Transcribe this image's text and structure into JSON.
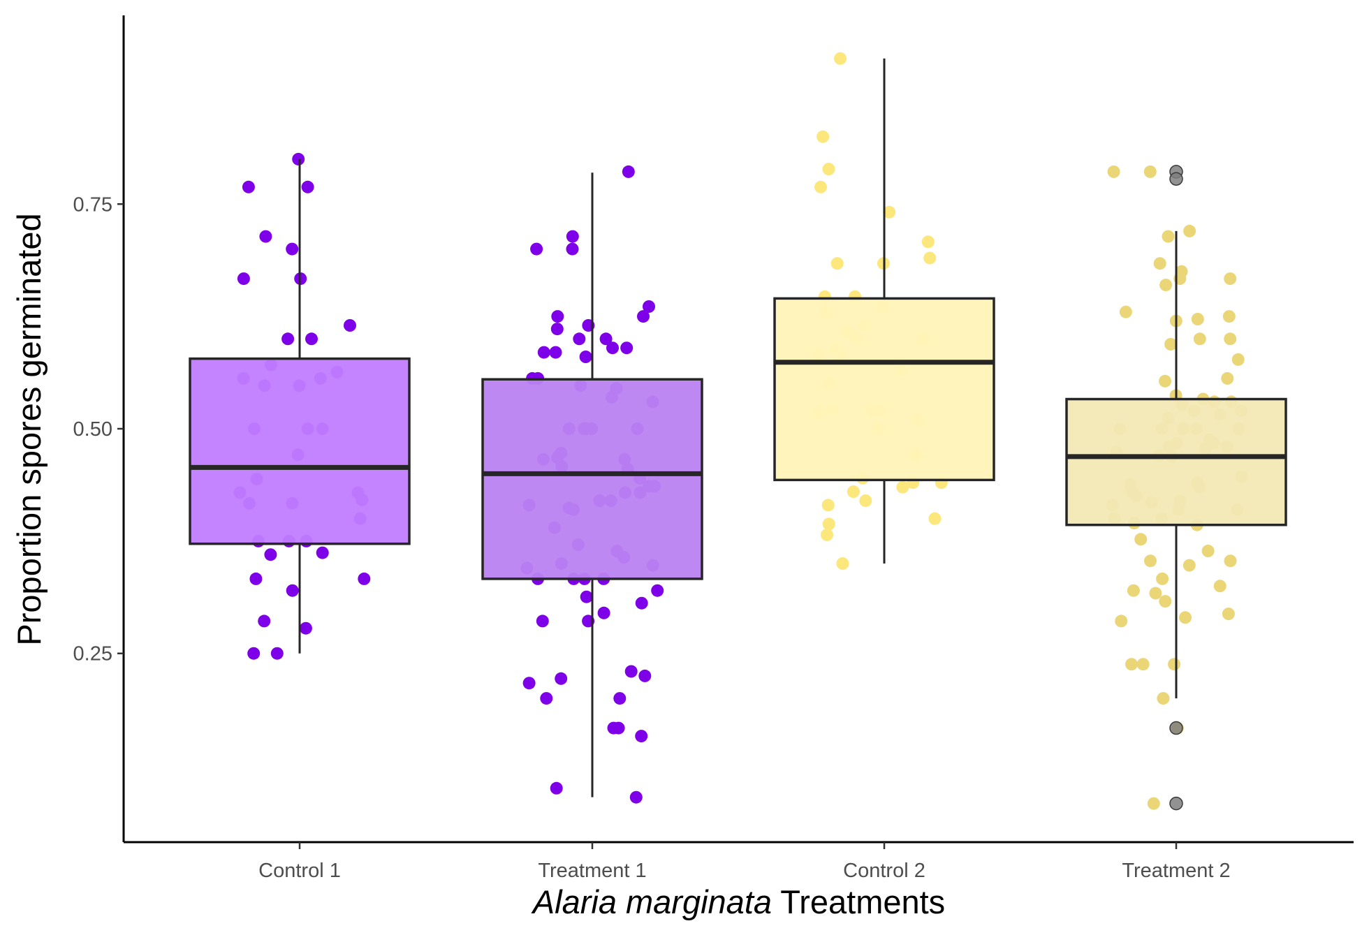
{
  "chart_data": {
    "type": "boxplot",
    "title": "",
    "xlabel_italic": "Alaria marginata",
    "xlabel_rest": "Treatments",
    "ylabel": "Proportion spores germinated",
    "ylim": [
      0.04,
      0.96
    ],
    "yticks": [
      0.25,
      0.5,
      0.75
    ],
    "ytick_labels": [
      "0.25",
      "0.50",
      "0.75"
    ],
    "grid": false,
    "legend": "none",
    "categories": [
      "Control 1",
      "Treatment 1",
      "Control 2",
      "Treatment 2"
    ],
    "colors": {
      "fills": [
        "#c17dff",
        "#bb82f2",
        "#fff4b8",
        "#f3e8b4"
      ],
      "points": [
        "#7e00e8",
        "#7e00e8",
        "#fce77d",
        "#ead677"
      ],
      "line": "#262626",
      "outlier": "#7f7f7f",
      "axis": "#000000"
    },
    "boxes": [
      {
        "name": "Control 1",
        "q1": 0.372,
        "median": 0.457,
        "q3": 0.578,
        "whisker_low": 0.25,
        "whisker_high": 0.8,
        "outliers": []
      },
      {
        "name": "Treatment 1",
        "q1": 0.333,
        "median": 0.45,
        "q3": 0.555,
        "whisker_low": 0.09,
        "whisker_high": 0.785,
        "outliers": []
      },
      {
        "name": "Control 2",
        "q1": 0.443,
        "median": 0.574,
        "q3": 0.645,
        "whisker_low": 0.35,
        "whisker_high": 0.912,
        "outliers": []
      },
      {
        "name": "Treatment 2",
        "q1": 0.393,
        "median": 0.469,
        "q3": 0.533,
        "whisker_low": 0.2,
        "whisker_high": 0.72,
        "outliers": [
          0.786,
          0.778,
          0.167,
          0.083
        ]
      }
    ],
    "points": [
      {
        "group": "Control 1",
        "values": [
          0.8,
          0.769,
          0.769,
          0.714,
          0.7,
          0.667,
          0.667,
          0.615,
          0.6,
          0.6,
          0.571,
          0.563,
          0.556,
          0.556,
          0.548,
          0.548,
          0.5,
          0.5,
          0.5,
          0.471,
          0.444,
          0.429,
          0.429,
          0.421,
          0.417,
          0.417,
          0.4,
          0.375,
          0.375,
          0.375,
          0.362,
          0.36,
          0.333,
          0.333,
          0.32,
          0.286,
          0.278,
          0.25,
          0.25
        ]
      },
      {
        "group": "Treatment 1",
        "values": [
          0.786,
          0.714,
          0.7,
          0.7,
          0.636,
          0.625,
          0.625,
          0.615,
          0.611,
          0.6,
          0.6,
          0.59,
          0.59,
          0.585,
          0.585,
          0.58,
          0.556,
          0.556,
          0.548,
          0.545,
          0.535,
          0.53,
          0.5,
          0.5,
          0.5,
          0.5,
          0.5,
          0.5,
          0.5,
          0.473,
          0.468,
          0.466,
          0.466,
          0.458,
          0.455,
          0.445,
          0.436,
          0.436,
          0.429,
          0.429,
          0.42,
          0.42,
          0.415,
          0.412,
          0.41,
          0.39,
          0.371,
          0.364,
          0.357,
          0.35,
          0.348,
          0.345,
          0.333,
          0.333,
          0.333,
          0.333,
          0.32,
          0.313,
          0.306,
          0.295,
          0.286,
          0.286,
          0.23,
          0.225,
          0.222,
          0.217,
          0.2,
          0.2,
          0.167,
          0.167,
          0.158,
          0.1,
          0.09
        ]
      },
      {
        "group": "Control 2",
        "values": [
          0.912,
          0.825,
          0.789,
          0.769,
          0.741,
          0.708,
          0.69,
          0.684,
          0.684,
          0.647,
          0.647,
          0.636,
          0.63,
          0.615,
          0.608,
          0.6,
          0.6,
          0.588,
          0.583,
          0.583,
          0.565,
          0.55,
          0.522,
          0.522,
          0.52,
          0.52,
          0.518,
          0.51,
          0.5,
          0.47,
          0.445,
          0.44,
          0.44,
          0.435,
          0.43,
          0.42,
          0.415,
          0.4,
          0.394,
          0.382,
          0.35
        ]
      },
      {
        "group": "Treatment 2",
        "values": [
          0.786,
          0.786,
          0.72,
          0.714,
          0.684,
          0.675,
          0.667,
          0.667,
          0.66,
          0.63,
          0.625,
          0.622,
          0.62,
          0.6,
          0.6,
          0.594,
          0.577,
          0.556,
          0.553,
          0.537,
          0.533,
          0.53,
          0.53,
          0.527,
          0.52,
          0.52,
          0.516,
          0.512,
          0.5,
          0.5,
          0.5,
          0.5,
          0.5,
          0.488,
          0.484,
          0.484,
          0.48,
          0.48,
          0.478,
          0.474,
          0.47,
          0.469,
          0.447,
          0.44,
          0.438,
          0.435,
          0.43,
          0.425,
          0.42,
          0.418,
          0.415,
          0.41,
          0.41,
          0.4,
          0.4,
          0.395,
          0.393,
          0.377,
          0.364,
          0.353,
          0.353,
          0.348,
          0.333,
          0.325,
          0.32,
          0.317,
          0.308,
          0.294,
          0.29,
          0.286,
          0.238,
          0.238,
          0.238,
          0.2,
          0.167,
          0.083
        ]
      }
    ]
  }
}
